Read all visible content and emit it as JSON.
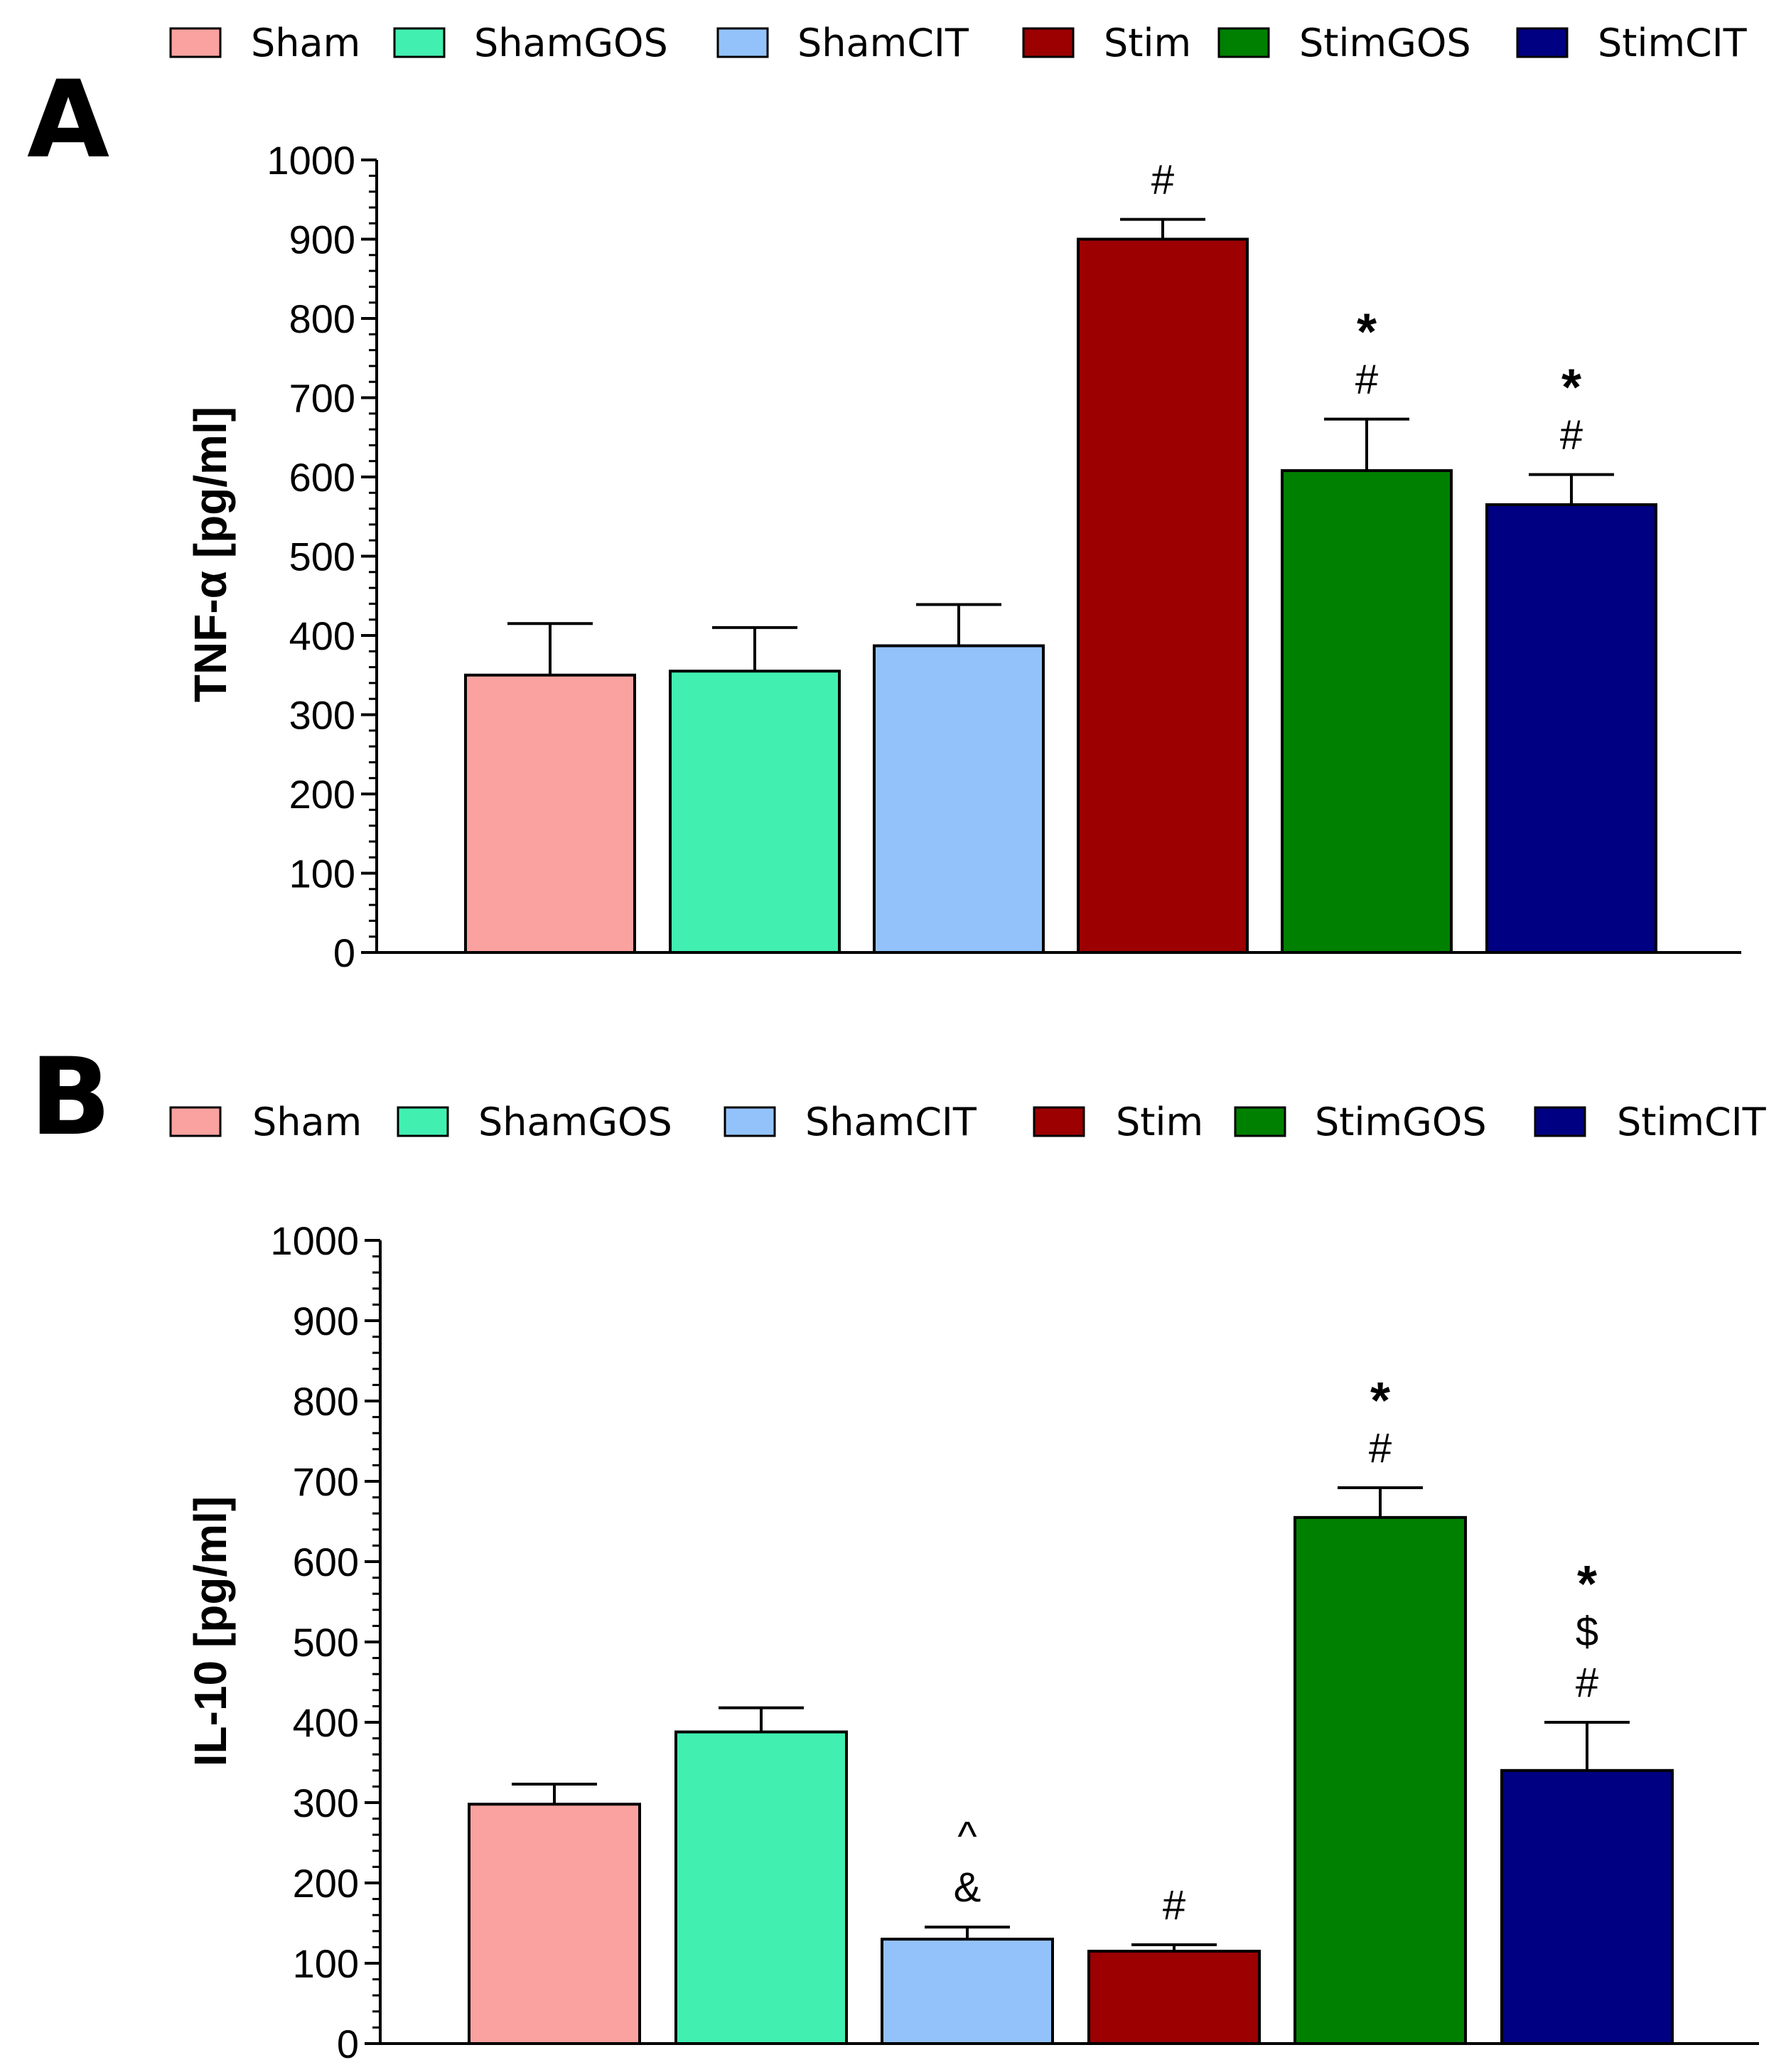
{
  "chart_data": [
    {
      "type": "bar",
      "panel": "A",
      "title": "",
      "ylabel": "TNF-α [pg/ml]",
      "xlabel": "",
      "ylim": [
        0,
        1000
      ],
      "yticks": [
        0,
        100,
        200,
        300,
        400,
        500,
        600,
        700,
        800,
        900,
        1000
      ],
      "grid": false,
      "legend": {
        "position": "top",
        "entries": [
          "Sham",
          "ShamGOS",
          "ShamCIT",
          "Stim",
          "StimGOS",
          "StimCIT"
        ]
      },
      "categories": [
        "Sham",
        "ShamGOS",
        "ShamCIT",
        "Stim",
        "StimGOS",
        "StimCIT"
      ],
      "values": [
        350,
        355,
        387,
        900,
        608,
        565
      ],
      "errors": [
        65,
        55,
        52,
        25,
        65,
        38
      ],
      "colors": [
        "#f9a29f",
        "#41f0b0",
        "#93c2fa",
        "#9c0000",
        "#008000",
        "#000082"
      ],
      "annotations": [
        [],
        [],
        [],
        [
          "#"
        ],
        [
          "#",
          "*"
        ],
        [
          "#",
          "*"
        ]
      ]
    },
    {
      "type": "bar",
      "panel": "B",
      "title": "",
      "ylabel": "IL-10 [pg/ml]",
      "xlabel": "",
      "ylim": [
        0,
        1000
      ],
      "yticks": [
        0,
        100,
        200,
        300,
        400,
        500,
        600,
        700,
        800,
        900,
        1000
      ],
      "grid": false,
      "legend": {
        "position": "top",
        "entries": [
          "Sham",
          "ShamGOS",
          "ShamCIT",
          "Stim",
          "StimGOS",
          "StimCIT"
        ]
      },
      "categories": [
        "Sham",
        "ShamGOS",
        "ShamCIT",
        "Stim",
        "StimGOS",
        "StimCIT"
      ],
      "values": [
        298,
        388,
        130,
        115,
        655,
        340
      ],
      "errors": [
        25,
        30,
        15,
        8,
        37,
        60
      ],
      "colors": [
        "#f9a29f",
        "#41f0b0",
        "#93c2fa",
        "#9c0000",
        "#008000",
        "#000082"
      ],
      "annotations": [
        [],
        [],
        [
          "&",
          "^"
        ],
        [
          "#"
        ],
        [
          "#",
          "*"
        ],
        [
          "#",
          "$",
          "*"
        ]
      ]
    }
  ]
}
